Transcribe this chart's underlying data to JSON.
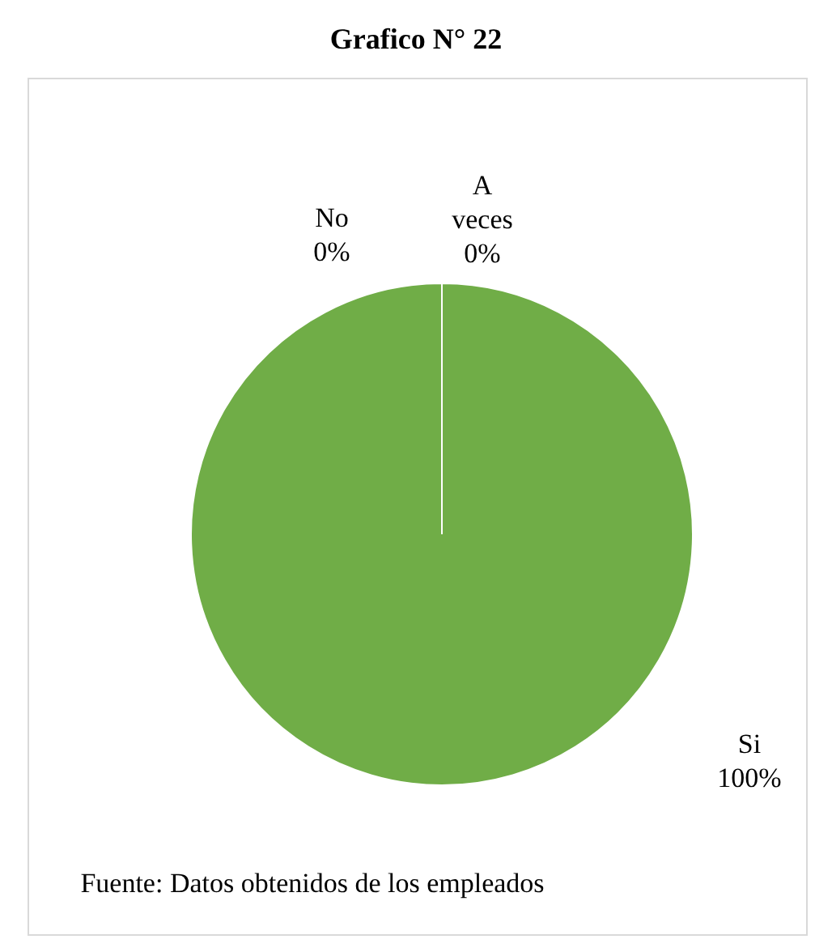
{
  "chart_data": {
    "type": "pie",
    "title": "Grafico N° 22",
    "categories": [
      "Si",
      "No",
      "A veces"
    ],
    "values": [
      100,
      0,
      0
    ],
    "colors": [
      "#70ad47",
      "#4472c4",
      "#ed7d31"
    ],
    "value_labels": [
      "100%",
      "0%",
      "0%"
    ],
    "annotations": [
      "Fuente: Datos obtenidos de los empleados"
    ]
  }
}
